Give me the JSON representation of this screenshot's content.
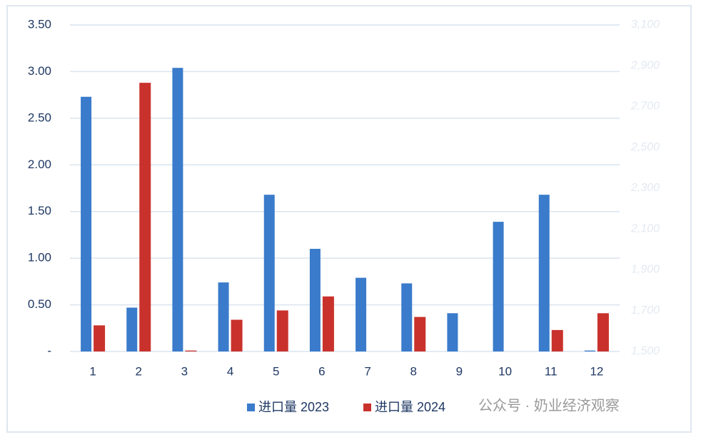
{
  "chart_data": {
    "type": "bar",
    "categories": [
      "1",
      "2",
      "3",
      "4",
      "5",
      "6",
      "7",
      "8",
      "9",
      "10",
      "11",
      "12"
    ],
    "series": [
      {
        "name": "进口量 2023",
        "color": "#3a7bcb",
        "values": [
          2.73,
          0.47,
          3.04,
          0.74,
          1.68,
          1.1,
          0.79,
          0.73,
          0.41,
          1.39,
          1.68,
          0.01
        ]
      },
      {
        "name": "进口量 2024",
        "color": "#c9322c",
        "values": [
          0.28,
          2.88,
          0.01,
          0.34,
          0.44,
          0.59,
          0,
          0.37,
          0,
          0,
          0.23,
          0.41
        ]
      }
    ],
    "ylim": [
      0,
      3.5
    ],
    "yticks": [
      {
        "value": 0,
        "label": "-"
      },
      {
        "value": 0.5,
        "label": "0.50"
      },
      {
        "value": 1,
        "label": "1.00"
      },
      {
        "value": 1.5,
        "label": "1.50"
      },
      {
        "value": 2,
        "label": "2.00"
      },
      {
        "value": 2.5,
        "label": "2.50"
      },
      {
        "value": 3,
        "label": "3.00"
      },
      {
        "value": 3.5,
        "label": "3.50"
      }
    ],
    "y2lim": [
      1500,
      3100
    ],
    "y2ticks": [
      {
        "value": 1500,
        "label": "1,500"
      },
      {
        "value": 1700,
        "label": "1,700"
      },
      {
        "value": 1900,
        "label": "1,900"
      },
      {
        "value": 2100,
        "label": "2,100"
      },
      {
        "value": 2300,
        "label": "2,300"
      },
      {
        "value": 2500,
        "label": "2,500"
      },
      {
        "value": 2700,
        "label": "2,700"
      },
      {
        "value": 2900,
        "label": "2,900"
      },
      {
        "value": 3100,
        "label": "3,100"
      }
    ],
    "grid": true,
    "legend": "bottom",
    "watermark": "公众号 · 奶业经济观察"
  }
}
